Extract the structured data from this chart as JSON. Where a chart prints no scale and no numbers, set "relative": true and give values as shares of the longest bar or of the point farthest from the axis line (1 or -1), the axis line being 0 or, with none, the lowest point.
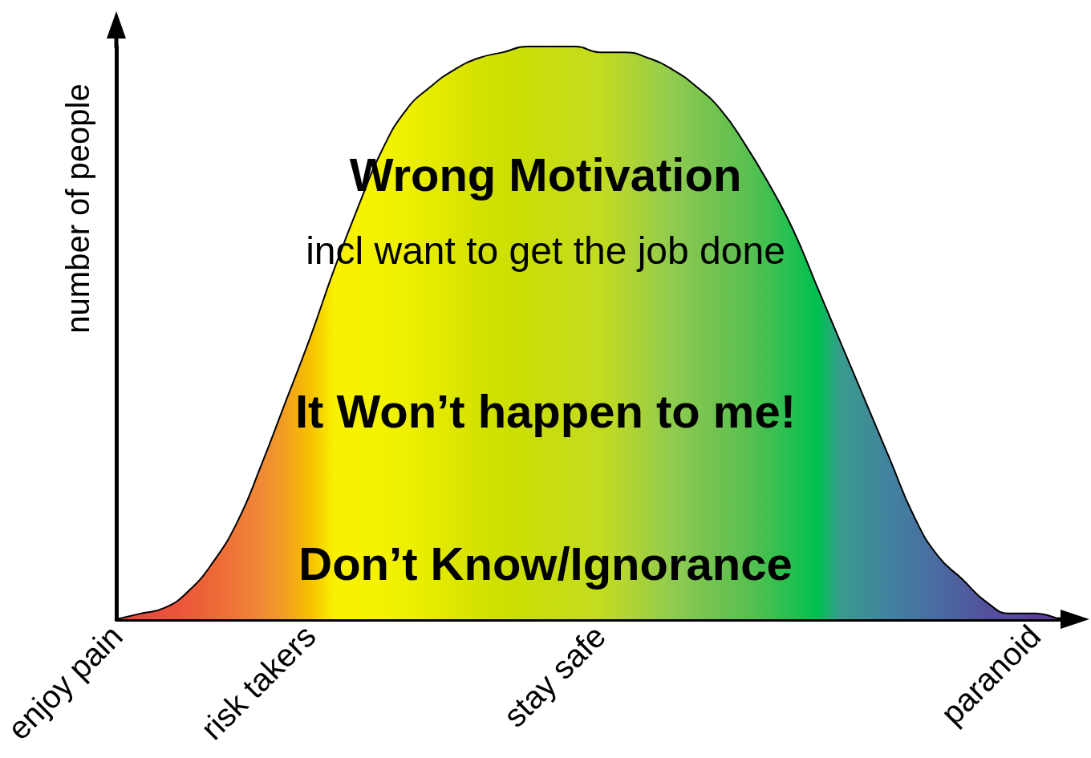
{
  "chart_data": {
    "type": "area",
    "relative": true,
    "ylabel": "number of people",
    "categories": [
      "enjoy pain",
      null,
      null,
      null,
      null,
      null,
      null,
      null,
      "risk takers",
      null,
      null,
      null,
      null,
      null,
      null,
      null,
      null,
      null,
      null,
      null,
      "stay safe",
      null,
      null,
      null,
      null,
      null,
      null,
      null,
      null,
      null,
      null,
      null,
      null,
      null,
      null,
      null,
      null,
      null,
      "paranoid",
      null
    ],
    "series": [
      {
        "color": "#000000",
        "values": [
          0,
          0.01,
          0.02,
          0.05,
          0.1,
          0.17,
          0.27,
          0.38,
          0.49,
          0.61,
          0.72,
          0.82,
          0.89,
          0.93,
          0.96,
          0.98,
          0.99,
          1,
          1,
          1,
          0.99,
          0.99,
          0.98,
          0.96,
          0.93,
          0.89,
          0.83,
          0.76,
          0.68,
          0.58,
          0.48,
          0.38,
          0.28,
          0.18,
          0.11,
          0.07,
          0.03,
          0.01,
          0.01,
          0
        ],
        "colors": [
          "#e8433f",
          "#e94a3d",
          "#ea513c",
          "#ec5a3a",
          "#ed6838",
          "#ee7836",
          "#ef8a35",
          "#f2a020",
          "#f6c000",
          "#f8f000",
          "#f6f200",
          "#f2f200",
          "#eef000",
          "#e6ec00",
          "#dde600",
          "#d4e200",
          "#cde000",
          "#cade08",
          "#c7dd10",
          "#c5dc18",
          "#c4dc20",
          "#b4d630",
          "#a2d040",
          "#90cc50",
          "#7ec650",
          "#6cc250",
          "#5cc050",
          "#40c050",
          "#20c050",
          "#00c050",
          "#3a9a90",
          "#3e8e94",
          "#4282a0",
          "#4676a0",
          "#4a6aa0",
          "#4e5e9e",
          "#52529c",
          "#5a4a9a",
          "#5a4299",
          "#5a3a98"
        ]
      }
    ],
    "annotations": [
      "Wrong Motivation",
      "incl want to get the job done",
      "It Won’t happen to me!",
      "Don’t Know/Ignorance"
    ]
  }
}
